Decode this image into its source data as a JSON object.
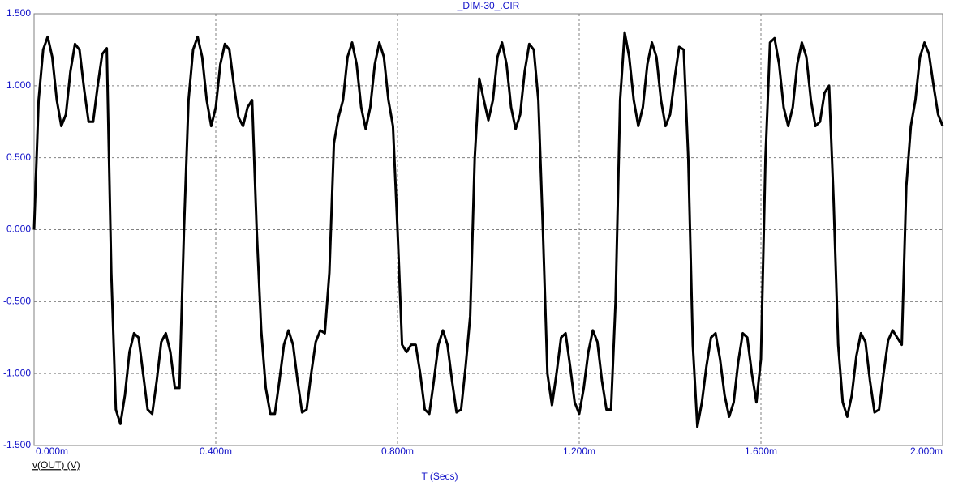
{
  "chart_data": {
    "type": "line",
    "title": "_DIM-30_.CIR",
    "xlabel": "T (Secs)",
    "grid": true,
    "xlim": [
      0,
      2
    ],
    "ylim": [
      -1.5,
      1.5
    ],
    "xticks": [
      {
        "value": 0,
        "label": "0.000m"
      },
      {
        "value": 0.4,
        "label": "0.400m"
      },
      {
        "value": 0.8,
        "label": "0.800m"
      },
      {
        "value": 1.2,
        "label": "1.200m"
      },
      {
        "value": 1.6,
        "label": "1.600m"
      },
      {
        "value": 2,
        "label": "2.000m"
      }
    ],
    "yticks": [
      {
        "value": 1.5,
        "label": "1.500"
      },
      {
        "value": 1,
        "label": "1.000"
      },
      {
        "value": 0.5,
        "label": "0.500"
      },
      {
        "value": 0,
        "label": "0.000"
      },
      {
        "value": -0.5,
        "label": "-0.500"
      },
      {
        "value": -1,
        "label": "-1.000"
      },
      {
        "value": -1.5,
        "label": "-1.500"
      }
    ],
    "x": [
      0,
      0.01,
      0.02,
      0.03,
      0.04,
      0.05,
      0.06,
      0.07,
      0.08,
      0.09,
      0.1,
      0.11,
      0.12,
      0.13,
      0.14,
      0.15,
      0.16,
      0.17,
      0.18,
      0.19,
      0.2,
      0.21,
      0.22,
      0.23,
      0.24,
      0.25,
      0.26,
      0.27,
      0.28,
      0.29,
      0.3,
      0.31,
      0.32,
      0.33,
      0.34,
      0.35,
      0.36,
      0.37,
      0.38,
      0.39,
      0.4,
      0.41,
      0.42,
      0.43,
      0.44,
      0.45,
      0.46,
      0.47,
      0.48,
      0.49,
      0.5,
      0.51,
      0.52,
      0.53,
      0.54,
      0.55,
      0.56,
      0.57,
      0.58,
      0.59,
      0.6,
      0.61,
      0.62,
      0.63,
      0.64,
      0.65,
      0.66,
      0.67,
      0.68,
      0.69,
      0.7,
      0.71,
      0.72,
      0.73,
      0.74,
      0.75,
      0.76,
      0.77,
      0.78,
      0.79,
      0.8,
      0.81,
      0.82,
      0.83,
      0.84,
      0.85,
      0.86,
      0.87,
      0.88,
      0.89,
      0.9,
      0.91,
      0.92,
      0.93,
      0.94,
      0.95,
      0.96,
      0.97,
      0.98,
      0.99,
      1,
      1.01,
      1.02,
      1.03,
      1.04,
      1.05,
      1.06,
      1.07,
      1.08,
      1.09,
      1.1,
      1.11,
      1.12,
      1.13,
      1.14,
      1.15,
      1.16,
      1.17,
      1.18,
      1.19,
      1.2,
      1.21,
      1.22,
      1.23,
      1.24,
      1.25,
      1.26,
      1.27,
      1.28,
      1.29,
      1.3,
      1.31,
      1.32,
      1.33,
      1.34,
      1.35,
      1.36,
      1.37,
      1.38,
      1.39,
      1.4,
      1.41,
      1.42,
      1.43,
      1.44,
      1.45,
      1.46,
      1.47,
      1.48,
      1.49,
      1.5,
      1.51,
      1.52,
      1.53,
      1.54,
      1.55,
      1.56,
      1.57,
      1.58,
      1.59,
      1.6,
      1.61,
      1.62,
      1.63,
      1.64,
      1.65,
      1.66,
      1.67,
      1.68,
      1.69,
      1.7,
      1.71,
      1.72,
      1.73,
      1.74,
      1.75,
      1.76,
      1.77,
      1.78,
      1.79,
      1.8,
      1.81,
      1.82,
      1.83,
      1.84,
      1.85,
      1.86,
      1.87,
      1.88,
      1.89,
      1.9,
      1.91,
      1.92,
      1.93,
      1.94,
      1.95,
      1.96,
      1.97,
      1.98,
      1.99,
      2
    ],
    "series": [
      {
        "name": "v(OUT) (V)",
        "color": "#000000",
        "values": [
          0,
          0.9,
          1.25,
          1.34,
          1.2,
          0.9,
          0.72,
          0.8,
          1.1,
          1.29,
          1.25,
          0.98,
          0.75,
          0.75,
          1.0,
          1.22,
          1.26,
          -0.3,
          -1.25,
          -1.35,
          -1.15,
          -0.85,
          -0.72,
          -0.75,
          -1.0,
          -1.25,
          -1.28,
          -1.05,
          -0.78,
          -0.72,
          -0.85,
          -1.1,
          -1.1,
          0.0,
          0.9,
          1.25,
          1.34,
          1.2,
          0.9,
          0.72,
          0.85,
          1.15,
          1.29,
          1.25,
          1.0,
          0.78,
          0.72,
          0.85,
          0.9,
          0.0,
          -0.7,
          -1.1,
          -1.28,
          -1.28,
          -1.05,
          -0.8,
          -0.7,
          -0.8,
          -1.05,
          -1.27,
          -1.25,
          -1.0,
          -0.78,
          -0.7,
          -0.72,
          -0.3,
          0.6,
          0.78,
          0.9,
          1.2,
          1.3,
          1.15,
          0.85,
          0.7,
          0.85,
          1.15,
          1.3,
          1.2,
          0.9,
          0.72,
          0.0,
          -0.8,
          -0.85,
          -0.8,
          -0.8,
          -1.0,
          -1.25,
          -1.28,
          -1.05,
          -0.8,
          -0.7,
          -0.8,
          -1.05,
          -1.27,
          -1.25,
          -0.95,
          -0.6,
          0.5,
          1.05,
          0.9,
          0.76,
          0.9,
          1.2,
          1.3,
          1.15,
          0.85,
          0.7,
          0.8,
          1.1,
          1.29,
          1.25,
          0.9,
          0.0,
          -1.0,
          -1.22,
          -1.0,
          -0.75,
          -0.72,
          -0.95,
          -1.2,
          -1.28,
          -1.1,
          -0.85,
          -0.7,
          -0.78,
          -1.05,
          -1.25,
          -1.25,
          -0.5,
          0.9,
          1.37,
          1.2,
          0.9,
          0.72,
          0.85,
          1.15,
          1.3,
          1.2,
          0.9,
          0.72,
          0.8,
          1.05,
          1.27,
          1.25,
          0.5,
          -0.8,
          -1.37,
          -1.2,
          -0.95,
          -0.75,
          -0.72,
          -0.9,
          -1.15,
          -1.3,
          -1.2,
          -0.92,
          -0.72,
          -0.75,
          -1.0,
          -1.2,
          -0.9,
          0.5,
          1.3,
          1.33,
          1.15,
          0.85,
          0.72,
          0.85,
          1.15,
          1.3,
          1.2,
          0.9,
          0.72,
          0.75,
          0.95,
          1.0,
          0.2,
          -0.8,
          -1.2,
          -1.3,
          -1.15,
          -0.88,
          -0.72,
          -0.78,
          -1.05,
          -1.27,
          -1.25,
          -1.0,
          -0.77,
          -0.7,
          -0.75,
          -0.8,
          0.3,
          0.72,
          0.9,
          1.2,
          1.3,
          1.22,
          1.0,
          0.8,
          0.72
        ]
      }
    ]
  }
}
